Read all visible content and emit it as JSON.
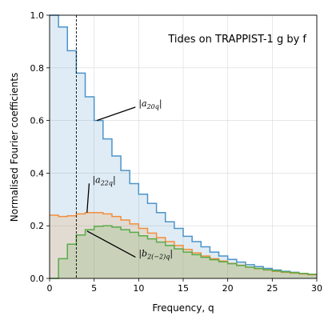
{
  "chart_data": {
    "type": "line",
    "title": "Tides on TRAPPIST-1 g by f",
    "xlabel": "Frequency, q",
    "ylabel": "Normalised Fourier coefficients",
    "xlim": [
      0,
      30
    ],
    "ylim": [
      0,
      1.0
    ],
    "xticks": [
      "0",
      "5",
      "10",
      "15",
      "20",
      "25",
      "30"
    ],
    "yticks": [
      "0.0",
      "0.2",
      "0.4",
      "0.6",
      "0.8",
      "1.0"
    ],
    "grid": true,
    "vline": 3.0,
    "bin_width": 1,
    "series": [
      {
        "name": "|a20q|",
        "color": "#4c94c8",
        "values": [
          1.0,
          0.955,
          0.865,
          0.78,
          0.69,
          0.6,
          0.53,
          0.465,
          0.41,
          0.36,
          0.32,
          0.285,
          0.25,
          0.215,
          0.19,
          0.16,
          0.14,
          0.12,
          0.1,
          0.085,
          0.072,
          0.062,
          0.052,
          0.045,
          0.038,
          0.032,
          0.027,
          0.023,
          0.019,
          0.015
        ]
      },
      {
        "name": "|a22q|",
        "color": "#f28e3a",
        "values": [
          0.24,
          0.235,
          0.238,
          0.245,
          0.25,
          0.25,
          0.245,
          0.235,
          0.222,
          0.207,
          0.19,
          0.172,
          0.155,
          0.14,
          0.125,
          0.11,
          0.097,
          0.085,
          0.075,
          0.066,
          0.057,
          0.05,
          0.043,
          0.037,
          0.032,
          0.027,
          0.023,
          0.02,
          0.017,
          0.014
        ]
      },
      {
        "name": "|b2(−2)q|",
        "color": "#5aaa4a",
        "values": [
          0.0,
          0.075,
          0.13,
          0.165,
          0.185,
          0.198,
          0.2,
          0.195,
          0.185,
          0.175,
          0.162,
          0.15,
          0.138,
          0.125,
          0.112,
          0.1,
          0.09,
          0.08,
          0.071,
          0.063,
          0.056,
          0.049,
          0.043,
          0.038,
          0.033,
          0.029,
          0.025,
          0.022,
          0.019,
          0.016
        ]
      }
    ],
    "annotations": [
      {
        "series": 0,
        "main": "|a",
        "sub": "20q",
        "end": "|",
        "at": [
          5.3,
          0.6
        ],
        "text_at": [
          10.0,
          0.66
        ]
      },
      {
        "series": 1,
        "main": "|a",
        "sub": "22q",
        "end": "|",
        "at": [
          4.2,
          0.25
        ],
        "text_at": [
          4.8,
          0.37
        ]
      },
      {
        "series": 2,
        "main": "|b",
        "sub": "2(−2)q",
        "end": "|",
        "at": [
          4.2,
          0.18
        ],
        "text_at": [
          10.0,
          0.09
        ]
      }
    ]
  }
}
